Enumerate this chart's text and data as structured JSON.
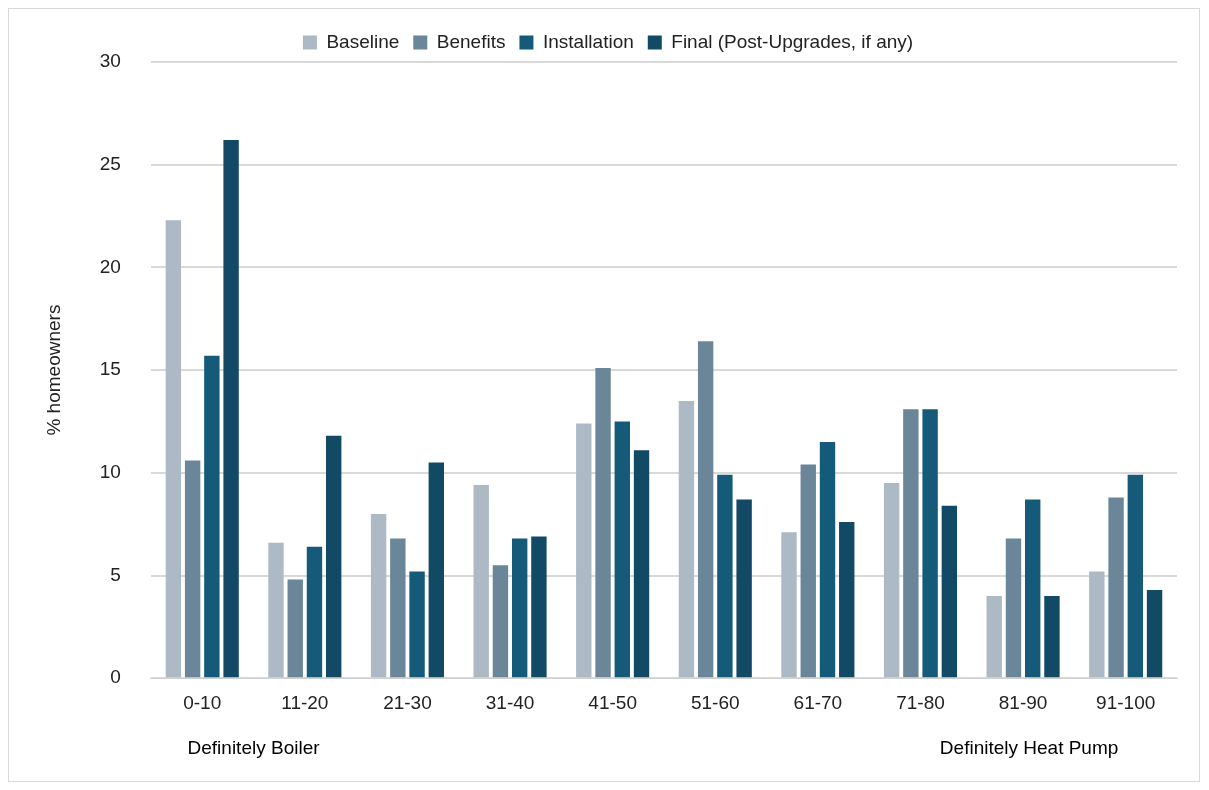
{
  "chart_data": {
    "type": "bar",
    "ylabel": "% homeowners",
    "categories": [
      "0-10",
      "11-20",
      "21-30",
      "31-40",
      "41-50",
      "51-60",
      "61-70",
      "71-80",
      "81-90",
      "91-100"
    ],
    "series": [
      {
        "name": "Baseline",
        "color": "#adb9c4",
        "values": [
          22.3,
          6.6,
          8.0,
          9.4,
          12.4,
          13.5,
          7.1,
          9.5,
          4.0,
          5.2
        ]
      },
      {
        "name": "Benefits",
        "color": "#6b8599",
        "values": [
          10.6,
          4.8,
          6.8,
          5.5,
          15.1,
          16.4,
          10.4,
          13.1,
          6.8,
          8.8
        ]
      },
      {
        "name": "Installation",
        "color": "#155a78",
        "values": [
          15.7,
          6.4,
          5.2,
          6.8,
          12.5,
          9.9,
          11.5,
          13.1,
          8.7,
          9.9
        ]
      },
      {
        "name": "Final (Post-Upgrades, if any)",
        "color": "#124a66",
        "values": [
          26.2,
          11.8,
          10.5,
          6.9,
          11.1,
          8.7,
          7.6,
          8.4,
          4.0,
          4.3
        ]
      }
    ],
    "annotations": [
      "Definitely Boiler",
      "Definitely Heat Pump"
    ],
    "ylim": [
      0,
      30
    ],
    "yticks": [
      0,
      5,
      10,
      15,
      20,
      25,
      30
    ],
    "grid": "y",
    "legend": "top"
  }
}
